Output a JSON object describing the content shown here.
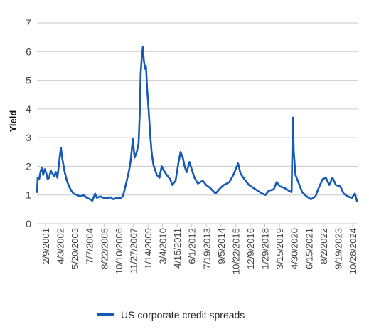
{
  "chart_data": {
    "type": "line",
    "ylabel": "Yield",
    "ylim": [
      0,
      7
    ],
    "yticks": [
      0,
      1,
      2,
      3,
      4,
      5,
      6,
      7
    ],
    "grid": "horizontal",
    "legend": "bottom-center",
    "xtick_labels": [
      "2/9/2001",
      "4/3/2002",
      "5/20/2003",
      "7/7/2004",
      "8/22/2005",
      "10/10/2006",
      "11/27/2007",
      "1/14/2009",
      "3/4/2010",
      "4/15/2011",
      "6/1/2012",
      "7/19/2013",
      "9/5/2014",
      "10/22/2015",
      "12/9/2016",
      "1/29/2018",
      "3/15/2019",
      "4/30/2020",
      "6/15/2021",
      "8/2/2022",
      "9/19/2023",
      "10/28/2024"
    ],
    "xlim": [
      "2001-01-01",
      "2025-01-31"
    ],
    "series": [
      {
        "name": "US corporate credit spreads",
        "color": "#1459b3",
        "points": [
          [
            "2001-01-01",
            1.1
          ],
          [
            "2001-01-20",
            1.6
          ],
          [
            "2001-03-01",
            1.55
          ],
          [
            "2001-04-15",
            1.85
          ],
          [
            "2001-05-20",
            1.95
          ],
          [
            "2001-06-20",
            1.7
          ],
          [
            "2001-08-01",
            1.9
          ],
          [
            "2001-09-15",
            1.75
          ],
          [
            "2001-10-20",
            1.55
          ],
          [
            "2001-12-01",
            1.6
          ],
          [
            "2002-01-15",
            1.85
          ],
          [
            "2002-03-01",
            1.75
          ],
          [
            "2002-04-15",
            1.65
          ],
          [
            "2002-06-01",
            1.8
          ],
          [
            "2002-07-15",
            1.6
          ],
          [
            "2002-08-20",
            2.0
          ],
          [
            "2002-09-20",
            2.35
          ],
          [
            "2002-10-20",
            2.65
          ],
          [
            "2002-11-20",
            2.3
          ],
          [
            "2002-12-20",
            2.1
          ],
          [
            "2003-02-01",
            1.8
          ],
          [
            "2003-04-01",
            1.5
          ],
          [
            "2003-06-01",
            1.3
          ],
          [
            "2003-08-01",
            1.15
          ],
          [
            "2003-10-01",
            1.05
          ],
          [
            "2004-01-01",
            1.0
          ],
          [
            "2004-04-01",
            0.95
          ],
          [
            "2004-07-01",
            1.0
          ],
          [
            "2004-10-01",
            0.9
          ],
          [
            "2005-01-01",
            0.85
          ],
          [
            "2005-03-01",
            0.8
          ],
          [
            "2005-05-15",
            1.05
          ],
          [
            "2005-07-01",
            0.9
          ],
          [
            "2005-10-01",
            0.95
          ],
          [
            "2006-01-01",
            0.9
          ],
          [
            "2006-04-01",
            0.88
          ],
          [
            "2006-07-01",
            0.92
          ],
          [
            "2006-10-01",
            0.85
          ],
          [
            "2007-01-01",
            0.9
          ],
          [
            "2007-04-01",
            0.88
          ],
          [
            "2007-06-15",
            0.95
          ],
          [
            "2007-08-15",
            1.25
          ],
          [
            "2007-10-01",
            1.5
          ],
          [
            "2007-12-01",
            1.85
          ],
          [
            "2008-01-15",
            2.2
          ],
          [
            "2008-03-15",
            2.95
          ],
          [
            "2008-05-01",
            2.3
          ],
          [
            "2008-07-01",
            2.5
          ],
          [
            "2008-08-20",
            2.8
          ],
          [
            "2008-09-20",
            3.8
          ],
          [
            "2008-10-15",
            5.2
          ],
          [
            "2008-11-15",
            5.8
          ],
          [
            "2008-12-15",
            6.15
          ],
          [
            "2009-01-10",
            5.7
          ],
          [
            "2009-02-10",
            5.4
          ],
          [
            "2009-03-10",
            5.5
          ],
          [
            "2009-04-10",
            4.7
          ],
          [
            "2009-05-10",
            4.2
          ],
          [
            "2009-06-10",
            3.6
          ],
          [
            "2009-07-10",
            3.0
          ],
          [
            "2009-08-10",
            2.5
          ],
          [
            "2009-10-01",
            2.05
          ],
          [
            "2010-01-01",
            1.7
          ],
          [
            "2010-03-15",
            1.6
          ],
          [
            "2010-05-15",
            2.0
          ],
          [
            "2010-07-15",
            1.85
          ],
          [
            "2010-10-01",
            1.7
          ],
          [
            "2011-01-01",
            1.55
          ],
          [
            "2011-03-01",
            1.35
          ],
          [
            "2011-06-01",
            1.5
          ],
          [
            "2011-08-15",
            2.1
          ],
          [
            "2011-10-15",
            2.5
          ],
          [
            "2011-12-15",
            2.3
          ],
          [
            "2012-02-01",
            2.0
          ],
          [
            "2012-04-01",
            1.8
          ],
          [
            "2012-06-15",
            2.15
          ],
          [
            "2012-08-15",
            1.9
          ],
          [
            "2012-11-01",
            1.6
          ],
          [
            "2013-02-01",
            1.4
          ],
          [
            "2013-06-15",
            1.5
          ],
          [
            "2013-09-15",
            1.35
          ],
          [
            "2014-01-01",
            1.25
          ],
          [
            "2014-06-01",
            1.05
          ],
          [
            "2014-10-15",
            1.25
          ],
          [
            "2015-01-15",
            1.35
          ],
          [
            "2015-06-15",
            1.45
          ],
          [
            "2015-10-01",
            1.7
          ],
          [
            "2016-02-10",
            2.1
          ],
          [
            "2016-04-15",
            1.75
          ],
          [
            "2016-08-01",
            1.55
          ],
          [
            "2016-12-01",
            1.35
          ],
          [
            "2017-06-01",
            1.2
          ],
          [
            "2017-12-01",
            1.05
          ],
          [
            "2018-03-01",
            1.0
          ],
          [
            "2018-06-01",
            1.15
          ],
          [
            "2018-10-15",
            1.2
          ],
          [
            "2019-01-01",
            1.45
          ],
          [
            "2019-04-01",
            1.3
          ],
          [
            "2019-08-01",
            1.25
          ],
          [
            "2019-12-01",
            1.15
          ],
          [
            "2020-02-15",
            1.1
          ],
          [
            "2020-03-23",
            3.7
          ],
          [
            "2020-04-15",
            2.5
          ],
          [
            "2020-06-01",
            1.7
          ],
          [
            "2020-09-01",
            1.4
          ],
          [
            "2020-12-01",
            1.1
          ],
          [
            "2021-04-01",
            0.95
          ],
          [
            "2021-08-01",
            0.85
          ],
          [
            "2021-12-01",
            0.95
          ],
          [
            "2022-03-01",
            1.25
          ],
          [
            "2022-06-15",
            1.55
          ],
          [
            "2022-09-15",
            1.6
          ],
          [
            "2022-12-15",
            1.35
          ],
          [
            "2023-03-15",
            1.6
          ],
          [
            "2023-06-15",
            1.35
          ],
          [
            "2023-10-15",
            1.3
          ],
          [
            "2024-01-15",
            1.05
          ],
          [
            "2024-05-01",
            0.95
          ],
          [
            "2024-09-01",
            0.9
          ],
          [
            "2024-11-15",
            1.05
          ],
          [
            "2025-01-15",
            0.78
          ]
        ]
      }
    ]
  }
}
